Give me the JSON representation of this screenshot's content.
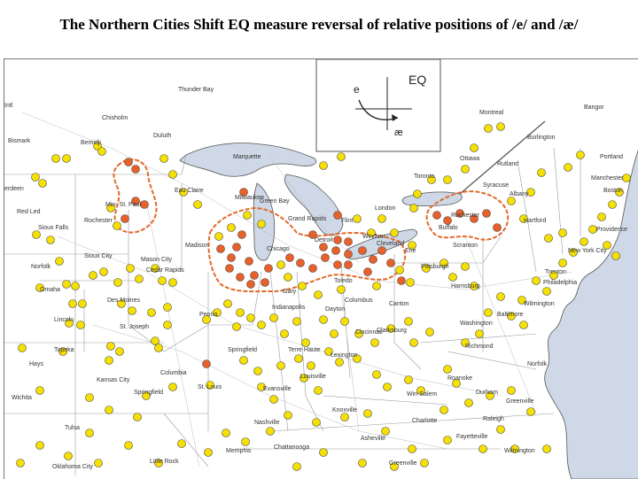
{
  "title": "The Northern Cities Shift EQ measure reversal of relative positions of /e/ and /æ/",
  "legend": {
    "label": "EQ",
    "vowel_e": "e",
    "vowel_ae": "æ"
  },
  "colors": {
    "yellow": "#f5e000",
    "orange": "#e8602a",
    "dot_stroke": "#444444",
    "outline": "#e06a2a",
    "land": "#ffffff",
    "water": "#cfd8e6"
  },
  "cities": [
    "Thunder Bay",
    "Chisholm",
    "Duluth",
    "Bemidji",
    "Bismark",
    "Marquette",
    "Eau Claire",
    "Green Bay",
    "Minneapolis-St. Paul",
    "Rochester",
    "Red Lake",
    "Sioux Falls",
    "Sioux City",
    "Mason City",
    "Cedar Rapids",
    "Madison",
    "Milwaukee",
    "Grand Rapids",
    "Detroit",
    "Flint",
    "Windsor",
    "London",
    "Toronto",
    "Buffalo",
    "Rochester",
    "Syracuse",
    "Albany",
    "Hartford",
    "Providence",
    "Boston",
    "Manchester",
    "Portland",
    "Bangor",
    "Montreal",
    "Burlington",
    "Ottawa",
    "Rutland",
    "Scranton",
    "Pittsburgh",
    "Harrisburg",
    "New York City",
    "Trenton",
    "Philadelphia",
    "Wilmington",
    "Baltimore",
    "Washington",
    "Richmond",
    "Norfolk",
    "Roanoke",
    "Durham",
    "Raleigh",
    "Greenville",
    "Fayetteville",
    "Wilmington",
    "Charlotte",
    "Asheville",
    "Greenville",
    "Chattanooga",
    "Memphis",
    "Little Rock",
    "Oklahoma City",
    "Tulsa",
    "Wichita",
    "Hays",
    "Topeka",
    "Omaha",
    "Lincoln",
    "Norfolk",
    "Kansas City",
    "St. Joseph",
    "Columbia",
    "Springfield",
    "St. Louis",
    "Peoria",
    "Chicago",
    "Gary",
    "Indianapolis",
    "Terre Haute",
    "Springfield",
    "Des Moines",
    "Toledo",
    "Cleveland",
    "Erie",
    "Columbus",
    "Dayton",
    "Cincinnati",
    "Canton",
    "Clarksburg",
    "Lexington",
    "Louisville",
    "Evansville",
    "Nashville",
    "Knoxville",
    "Winston-Salem",
    "Kansas City",
    "Toronto",
    "Ottawa",
    "Sioux Falls",
    "Aberdeen"
  ],
  "city_labels": {
    "thunder_bay": "Thunder Bay",
    "chisholm": "Chisholm",
    "duluth": "Duluth",
    "bemidji": "Bemidji",
    "bismark": "Bismark",
    "aberdeen": "erdeen",
    "intl": "Intl",
    "marquette": "Marquette",
    "eau_claire": "Eau Claire",
    "green_bay": "Green Bay",
    "minneapolis": "Min- St. Paul",
    "rochester_mn": "Rochester",
    "red_lake": "Red Led",
    "sioux_falls": "Sioux Falls",
    "sioux_city": "Sioux City",
    "mason_city": "Mason City",
    "cedar_rapids": "Cedar Rapids",
    "st_louis_label": "St. Louis",
    "madison": "Madison",
    "milwaukee": "Milwaukee",
    "grand_rapids": "Grand Rapids",
    "detroit": "Detroit",
    "flint": "Flint",
    "windsor": "Windsor",
    "london": "London",
    "toronto": "Toronto",
    "buffalo": "Buffalo",
    "rochester_ny": "Rochester",
    "syracuse": "Syracuse",
    "albany": "Albany",
    "hartford": "Hartford",
    "providence": "Providence",
    "boston": "Boston",
    "manchester": "Manchester",
    "portland": "Portland",
    "bangor": "Bangor",
    "montreal": "Montreal",
    "burlington": "Burlington",
    "ottawa": "Ottawa",
    "rutland": "Rutland",
    "scranton": "Scranton",
    "pittsburgh": "Pittsburgh",
    "harrisburg": "Harrisburg",
    "new_york": "New York City",
    "trenton": "Trenton",
    "philadelphia": "Philadelphia",
    "wilmington_de": "Wilmington",
    "baltimore": "Baltimore",
    "washington": "Washington",
    "richmond": "Richmond",
    "norfolk_va": "Norfolk",
    "roanoke": "Roanoke",
    "durham": "Durham",
    "raleigh": "Raleigh",
    "greenville_nc": "Greenville",
    "fayetteville": "Fayetteville",
    "wilmington_nc": "Wilmington",
    "charlotte": "Charlotte",
    "asheville": "Asheville",
    "greenville_sc": "Greenville",
    "chattanooga": "Chattanooga",
    "memphis": "Memphis",
    "little_rock": "Little Rock",
    "oklahoma_city": "Oklahoma City",
    "tulsa": "Tulsa",
    "wichita": "Wichita",
    "hays": "Hays",
    "topeka": "Topeka",
    "omaha": "Omaha",
    "lincoln": "Lincoln",
    "norfolk_ne": "Norfolk",
    "kansas_city": "Kansas City",
    "st_joseph": "St. Joseph",
    "columbia": "Columbia",
    "springfield_mo": "Springfield",
    "st_louis": "St. Louis",
    "peoria": "Peoria",
    "chicago": "Chicago",
    "gary": "Gary",
    "indianapolis": "Indianapolis",
    "terre_haute": "Terre Haute",
    "springfield_il": "Springfield",
    "des_moines": "Des Moines",
    "toledo": "Toledo",
    "cleveland": "Cleveland",
    "erie": "Erie",
    "columbus": "Columbus",
    "dayton": "Dayton",
    "cincinnati": "Cincinnati",
    "canton": "Canton",
    "clarksburg": "Clarksburg",
    "lexington": "Lexington",
    "louisville": "Louisville",
    "evansville": "Evansville",
    "nashville": "Nashville",
    "knoxville": "Knoxville",
    "winston_salem": "Win-Salem",
    "kansas_city2": "Kansas City"
  }
}
